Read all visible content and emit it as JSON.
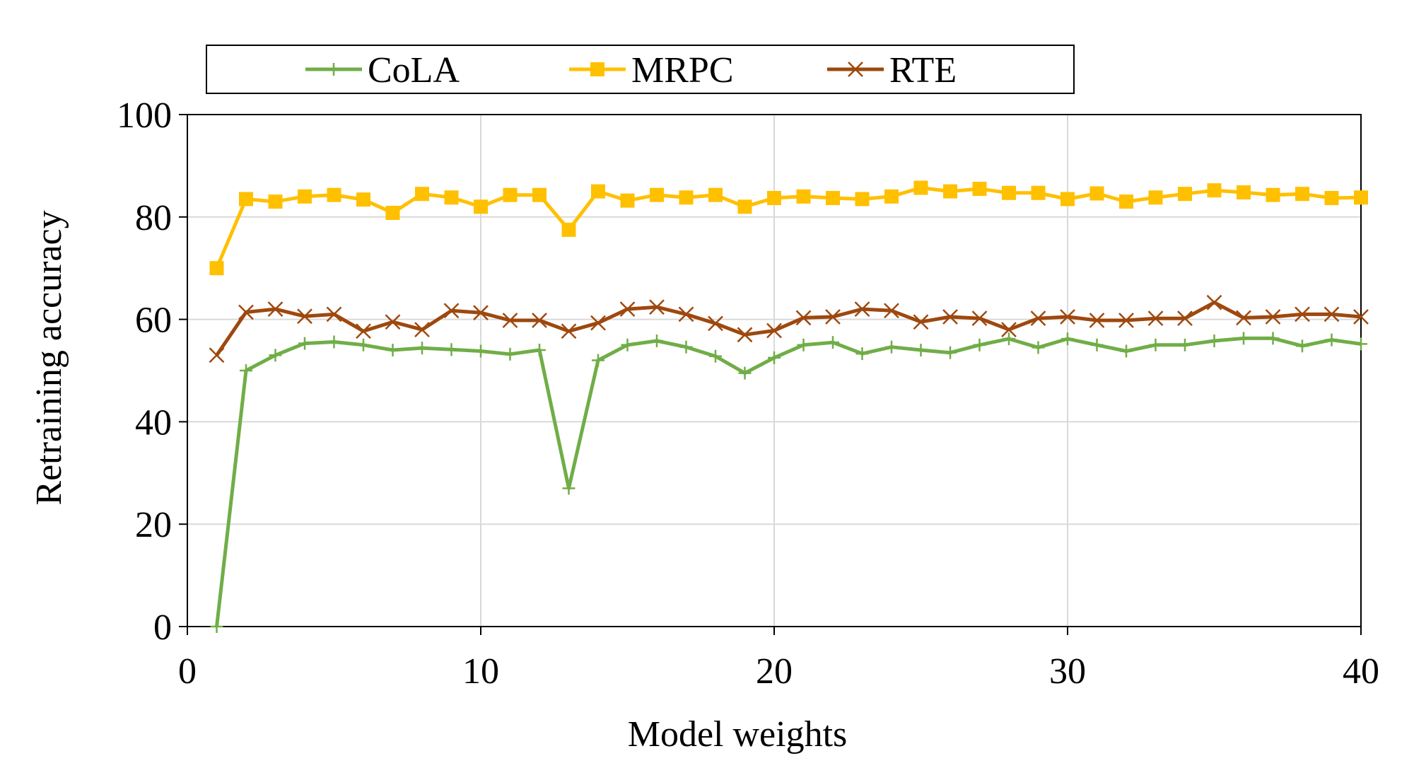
{
  "chart_data": {
    "type": "line",
    "title": "",
    "xlabel": "Model weights",
    "ylabel": "Retraining accuracy",
    "xlim": [
      0,
      40
    ],
    "ylim": [
      0,
      100
    ],
    "xticks": [
      0,
      10,
      20,
      30,
      40
    ],
    "yticks": [
      0,
      20,
      40,
      60,
      80,
      100
    ],
    "grid": true,
    "legend_position": "top",
    "x": [
      1,
      2,
      3,
      4,
      5,
      6,
      7,
      8,
      9,
      10,
      11,
      12,
      13,
      14,
      15,
      16,
      17,
      18,
      19,
      20,
      21,
      22,
      23,
      24,
      25,
      26,
      27,
      28,
      29,
      30,
      31,
      32,
      33,
      34,
      35,
      36,
      37,
      38,
      39,
      40
    ],
    "series": [
      {
        "name": "CoLA",
        "color": "#70ad47",
        "marker": "plus",
        "values": [
          0,
          50.0,
          53.0,
          55.3,
          55.6,
          55.0,
          54.0,
          54.4,
          54.1,
          53.8,
          53.2,
          54.0,
          27.0,
          52.0,
          55.0,
          55.8,
          54.6,
          52.8,
          49.5,
          52.5,
          55.0,
          55.5,
          53.3,
          54.6,
          54.0,
          53.5,
          55.0,
          56.2,
          54.5,
          56.2,
          55.0,
          53.8,
          55.0,
          55.0,
          55.8,
          56.3,
          56.3,
          54.8,
          56.0,
          55.2
        ]
      },
      {
        "name": "MRPC",
        "color": "#ffc000",
        "marker": "square",
        "values": [
          70.0,
          83.5,
          83.0,
          84.0,
          84.3,
          83.4,
          80.8,
          84.5,
          83.8,
          82.0,
          84.3,
          84.3,
          77.5,
          85.0,
          83.2,
          84.3,
          83.8,
          84.3,
          82.0,
          83.7,
          84.0,
          83.7,
          83.5,
          84.0,
          85.7,
          85.0,
          85.5,
          84.7,
          84.7,
          83.5,
          84.6,
          83.0,
          83.8,
          84.5,
          85.2,
          84.8,
          84.3,
          84.5,
          83.7,
          83.8
        ]
      },
      {
        "name": "RTE",
        "color": "#9e480e",
        "marker": "x",
        "values": [
          53.0,
          61.4,
          62.0,
          60.6,
          61.0,
          57.7,
          59.5,
          58.0,
          61.7,
          61.3,
          59.8,
          59.8,
          57.7,
          59.3,
          62.0,
          62.4,
          61.0,
          59.2,
          57.0,
          57.8,
          60.3,
          60.5,
          62.0,
          61.7,
          59.5,
          60.5,
          60.2,
          58.0,
          60.2,
          60.5,
          59.8,
          59.8,
          60.2,
          60.2,
          63.3,
          60.3,
          60.5,
          61.0,
          61.0,
          60.5
        ]
      }
    ]
  }
}
